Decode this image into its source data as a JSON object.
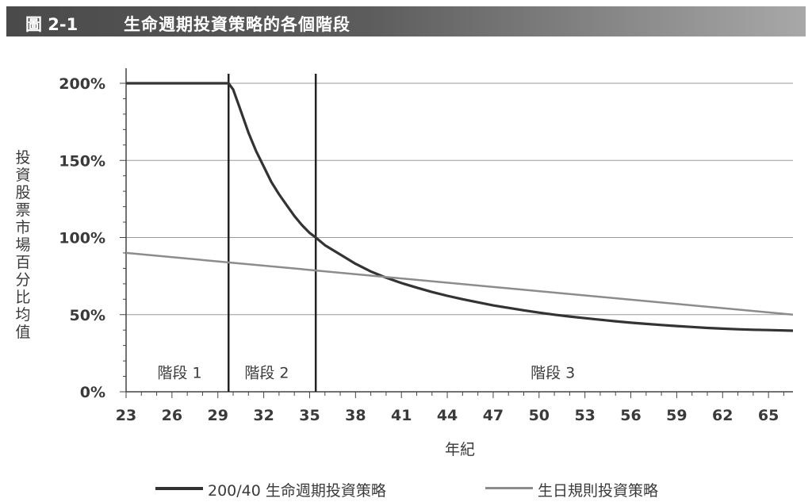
{
  "figure": {
    "number": "圖 2-1",
    "title": "生命週期投資策略的各個階段"
  },
  "chart_data": {
    "type": "line",
    "xlabel": "年紀",
    "ylabel": "投資股票市場百分比均值",
    "x_ticks": [
      23,
      26,
      29,
      32,
      35,
      38,
      41,
      44,
      47,
      50,
      53,
      56,
      59,
      62,
      65
    ],
    "xlim": [
      23,
      66.6
    ],
    "y_ticks": [
      0,
      50,
      100,
      150,
      200
    ],
    "y_tick_labels": [
      "0%",
      "50%",
      "100%",
      "150%",
      "200%"
    ],
    "ylim": [
      0,
      200
    ],
    "grid": "horizontal",
    "legend": "bottom",
    "phase_dividers": [
      29.7,
      35.4
    ],
    "phase_labels": [
      {
        "label": "階段 1",
        "x": 26.5,
        "y": 9
      },
      {
        "label": "階段 2",
        "x": 32.2,
        "y": 9
      },
      {
        "label": "階段 3",
        "x": 50.9,
        "y": 9
      }
    ],
    "series": [
      {
        "name": "200/40 生命週期投資策略",
        "color": "#333333",
        "points": [
          [
            23,
            200
          ],
          [
            29.7,
            200
          ],
          [
            30,
            196
          ],
          [
            30.4,
            185
          ],
          [
            31,
            168
          ],
          [
            31.5,
            156
          ],
          [
            32,
            146
          ],
          [
            32.5,
            136
          ],
          [
            33,
            128
          ],
          [
            33.5,
            121
          ],
          [
            34,
            114
          ],
          [
            34.5,
            108
          ],
          [
            35,
            103
          ],
          [
            35.4,
            100
          ],
          [
            36,
            95
          ],
          [
            37,
            89
          ],
          [
            38,
            83
          ],
          [
            39,
            78
          ],
          [
            40,
            74
          ],
          [
            41,
            70.5
          ],
          [
            42,
            67.5
          ],
          [
            43,
            64.7
          ],
          [
            44,
            62.2
          ],
          [
            45,
            60
          ],
          [
            46,
            58
          ],
          [
            47,
            56
          ],
          [
            48,
            54.4
          ],
          [
            49,
            52.8
          ],
          [
            50,
            51.3
          ],
          [
            51,
            50
          ],
          [
            52,
            48.8
          ],
          [
            53,
            47.7
          ],
          [
            54,
            46.7
          ],
          [
            55,
            45.7
          ],
          [
            56,
            44.8
          ],
          [
            57,
            44
          ],
          [
            58,
            43.3
          ],
          [
            59,
            42.6
          ],
          [
            60,
            42
          ],
          [
            61,
            41.4
          ],
          [
            62,
            40.9
          ],
          [
            63,
            40.5
          ],
          [
            64,
            40.2
          ],
          [
            65,
            40
          ],
          [
            66.6,
            39.6
          ]
        ]
      },
      {
        "name": "生日規則投資策略",
        "color": "#8c8c8c",
        "points": [
          [
            23,
            90
          ],
          [
            66.6,
            50
          ]
        ]
      }
    ]
  }
}
